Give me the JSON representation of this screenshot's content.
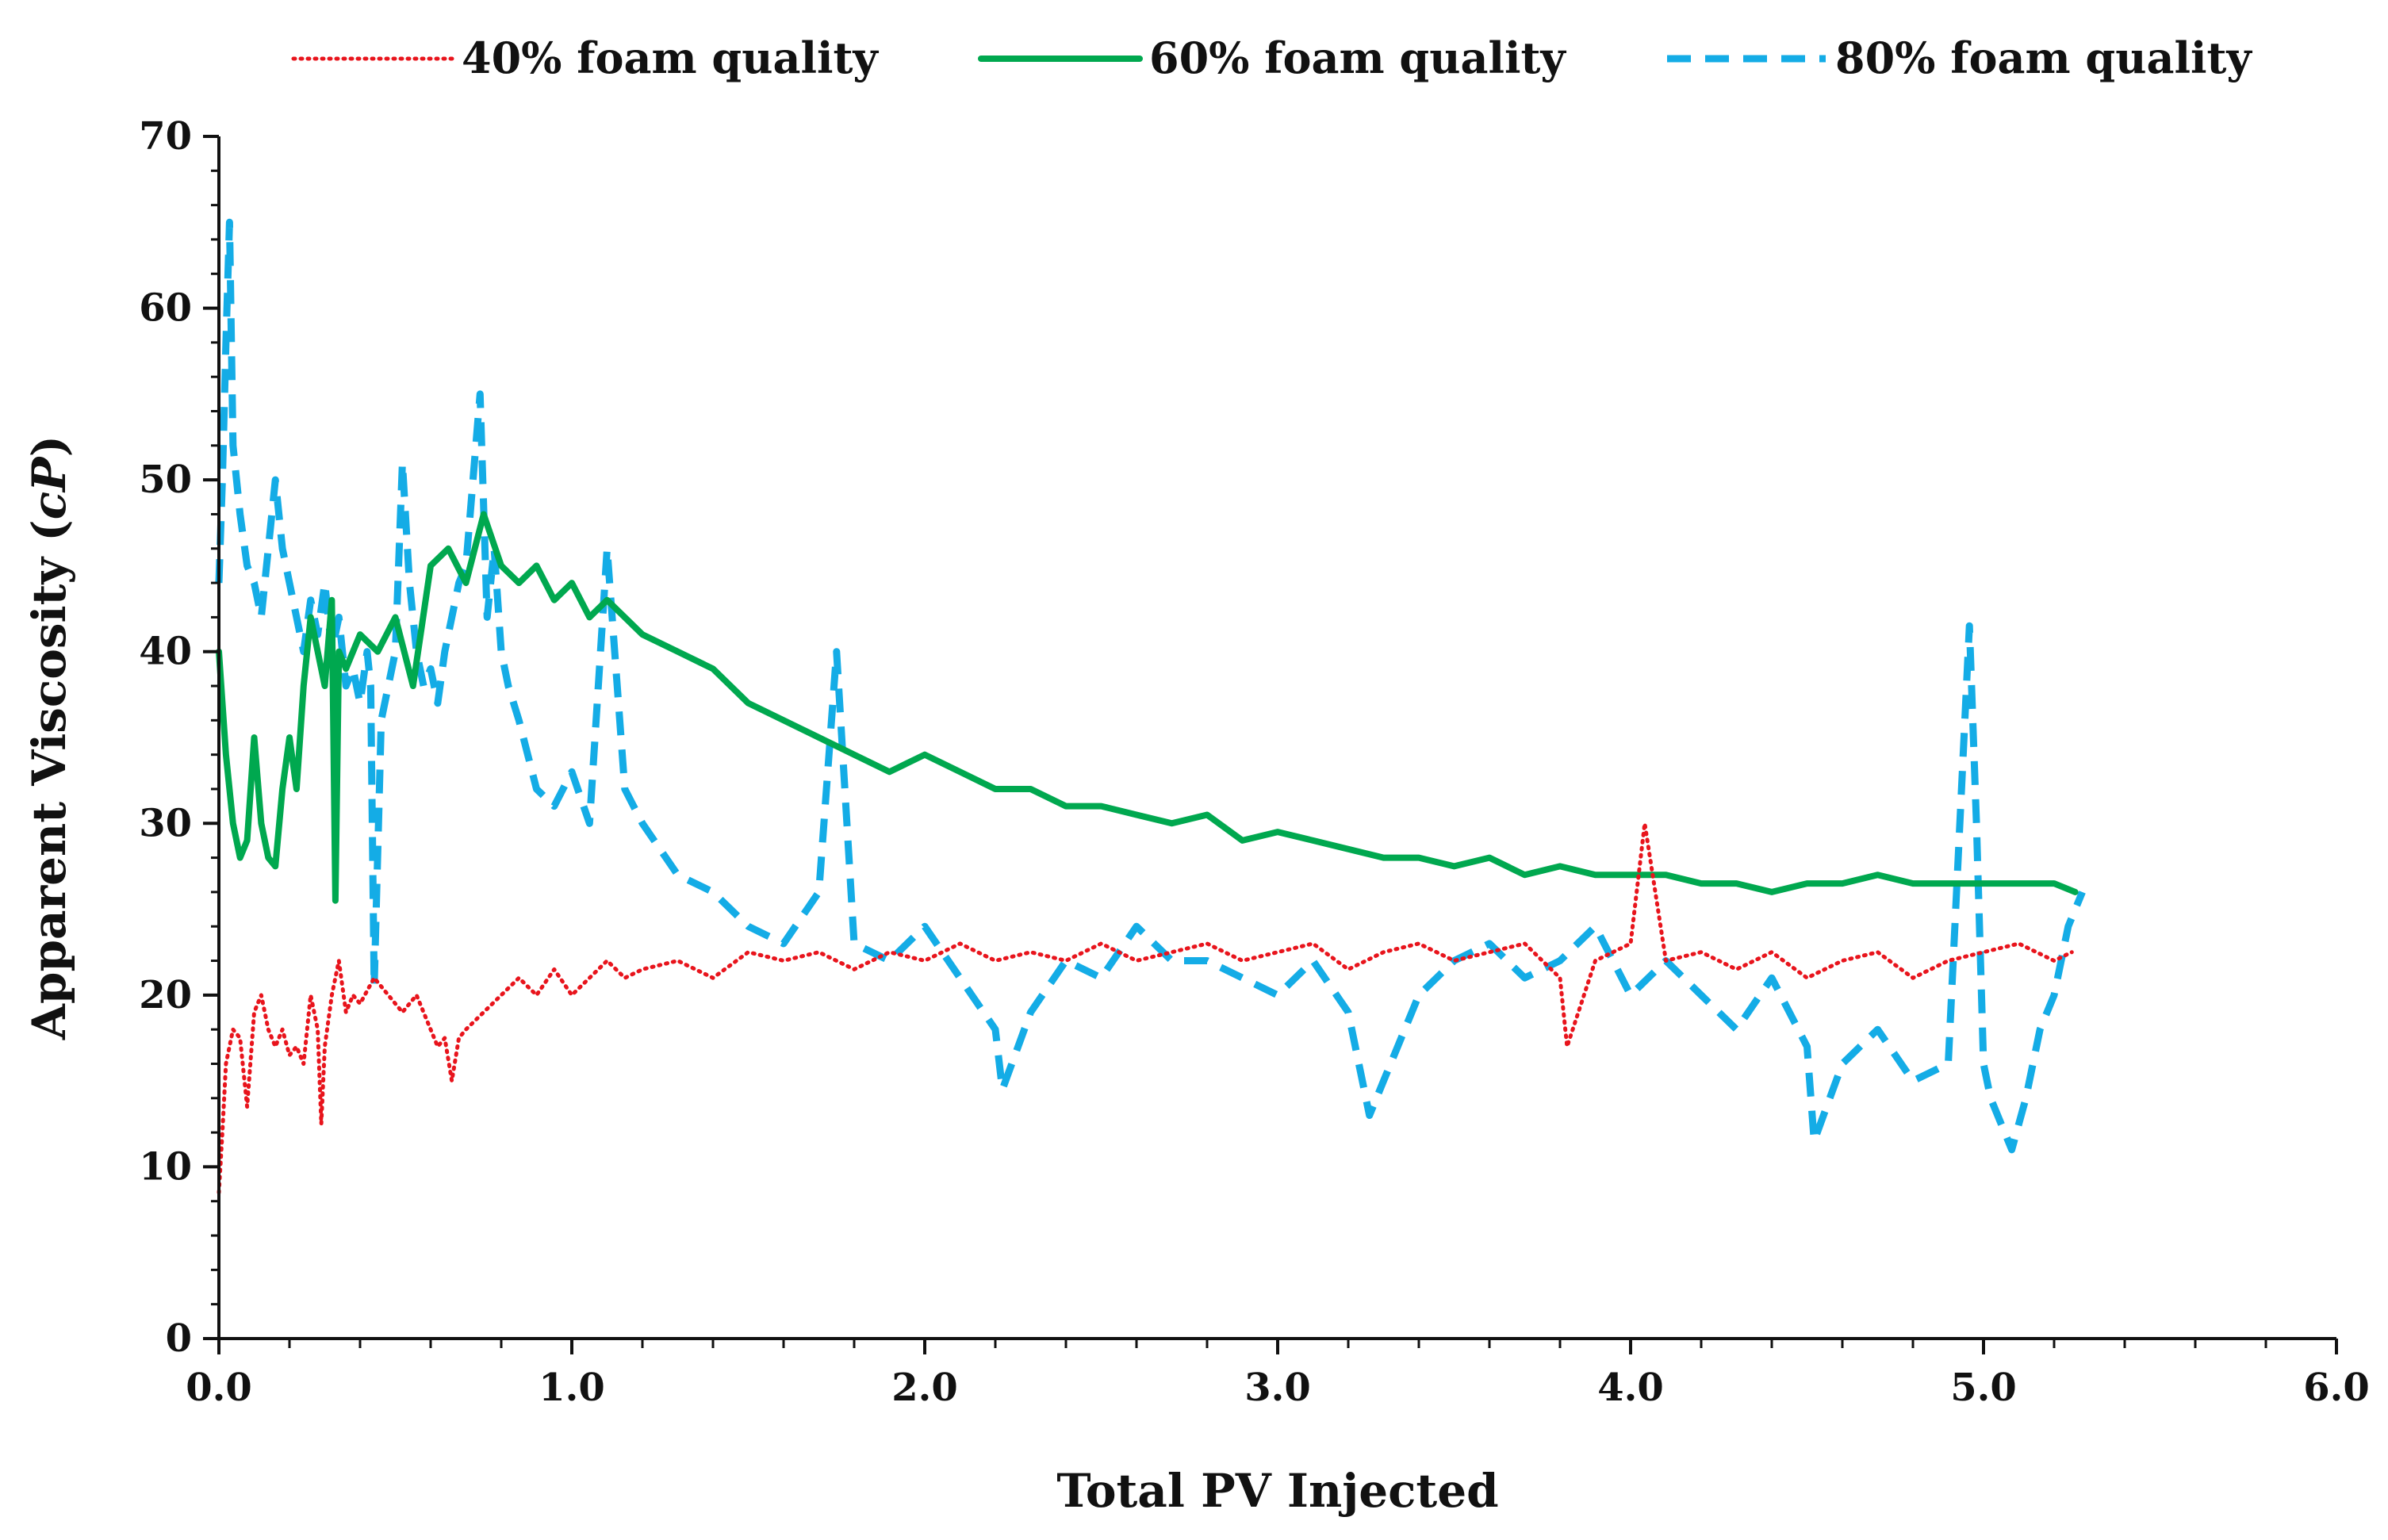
{
  "chart_data": {
    "type": "line",
    "title": "",
    "xlabel": "Total PV Injected",
    "ylabel": "Apparent Viscosity (cP)",
    "ylabel_main": "Apparent Viscosity (",
    "ylabel_unit": "cP",
    "ylabel_close": ")",
    "xlim": [
      0,
      6
    ],
    "ylim": [
      0,
      70
    ],
    "x_ticks": [
      0,
      1,
      2,
      3,
      4,
      5,
      6
    ],
    "x_tick_labels": [
      "0.0",
      "1.0",
      "2.0",
      "3.0",
      "4.0",
      "5.0",
      "6.0"
    ],
    "y_ticks": [
      0,
      10,
      20,
      30,
      40,
      50,
      60,
      70
    ],
    "y_tick_labels": [
      "0",
      "10",
      "20",
      "30",
      "40",
      "50",
      "60",
      "70"
    ],
    "grid": false,
    "legend_position": "top",
    "series": [
      {
        "name": "40% foam quality",
        "color": "#e8141c",
        "style": "dotted",
        "x": [
          0.0,
          0.01,
          0.02,
          0.04,
          0.06,
          0.08,
          0.1,
          0.12,
          0.14,
          0.16,
          0.18,
          0.2,
          0.22,
          0.24,
          0.26,
          0.28,
          0.29,
          0.3,
          0.32,
          0.34,
          0.36,
          0.38,
          0.4,
          0.44,
          0.48,
          0.52,
          0.56,
          0.6,
          0.62,
          0.64,
          0.66,
          0.68,
          0.7,
          0.75,
          0.8,
          0.85,
          0.9,
          0.95,
          1.0,
          1.05,
          1.1,
          1.15,
          1.2,
          1.3,
          1.4,
          1.5,
          1.6,
          1.7,
          1.8,
          1.9,
          2.0,
          2.1,
          2.2,
          2.3,
          2.4,
          2.5,
          2.6,
          2.7,
          2.8,
          2.9,
          3.0,
          3.1,
          3.2,
          3.3,
          3.4,
          3.5,
          3.6,
          3.7,
          3.8,
          3.82,
          3.9,
          4.0,
          4.04,
          4.1,
          4.2,
          4.3,
          4.4,
          4.5,
          4.6,
          4.7,
          4.8,
          4.9,
          5.0,
          5.1,
          5.2,
          5.25
        ],
        "y": [
          8.5,
          12,
          16,
          18,
          17.5,
          13.5,
          19,
          20,
          18,
          17,
          18,
          16.5,
          17,
          16,
          20,
          18,
          12.5,
          17,
          20,
          22,
          19,
          20,
          19.5,
          21,
          20,
          19,
          20,
          18,
          17,
          17.5,
          15,
          17.5,
          18,
          19,
          20,
          21,
          20,
          21.5,
          20,
          21,
          22,
          21,
          21.5,
          22,
          21,
          22.5,
          22,
          22.5,
          21.5,
          22.5,
          22,
          23,
          22,
          22.5,
          22,
          23,
          22,
          22.5,
          23,
          22,
          22.5,
          23,
          21.5,
          22.5,
          23,
          22,
          22.5,
          23,
          21,
          17,
          22,
          23,
          30,
          22,
          22.5,
          21.5,
          22.5,
          21,
          22,
          22.5,
          21,
          22,
          22.5,
          23,
          22,
          22.5
        ]
      },
      {
        "name": "60% foam quality",
        "color": "#00a84f",
        "style": "solid",
        "x": [
          0.0,
          0.02,
          0.04,
          0.06,
          0.08,
          0.1,
          0.12,
          0.14,
          0.16,
          0.18,
          0.2,
          0.22,
          0.24,
          0.26,
          0.28,
          0.3,
          0.32,
          0.33,
          0.34,
          0.36,
          0.38,
          0.4,
          0.45,
          0.5,
          0.55,
          0.6,
          0.65,
          0.7,
          0.75,
          0.8,
          0.85,
          0.9,
          0.95,
          1.0,
          1.05,
          1.1,
          1.2,
          1.3,
          1.4,
          1.5,
          1.6,
          1.7,
          1.8,
          1.9,
          2.0,
          2.1,
          2.2,
          2.3,
          2.4,
          2.5,
          2.6,
          2.7,
          2.8,
          2.9,
          3.0,
          3.1,
          3.2,
          3.3,
          3.4,
          3.5,
          3.6,
          3.7,
          3.8,
          3.9,
          4.0,
          4.1,
          4.2,
          4.3,
          4.4,
          4.5,
          4.6,
          4.7,
          4.8,
          4.9,
          5.0,
          5.1,
          5.2,
          5.26
        ],
        "y": [
          40,
          34,
          30,
          28,
          29,
          35,
          30,
          28,
          27.5,
          32,
          35,
          32,
          38,
          42,
          40,
          38,
          43,
          25.5,
          40,
          39,
          40,
          41,
          40,
          42,
          38,
          45,
          46,
          44,
          48,
          45,
          44,
          45,
          43,
          44,
          42,
          43,
          41,
          40,
          39,
          37,
          36,
          35,
          34,
          33,
          34,
          33,
          32,
          32,
          31,
          31,
          30.5,
          30,
          30.5,
          29,
          29.5,
          29,
          28.5,
          28,
          28,
          27.5,
          28,
          27,
          27.5,
          27,
          27,
          27,
          26.5,
          26.5,
          26,
          26.5,
          26.5,
          27,
          26.5,
          26.5,
          26.5,
          26.5,
          26.5,
          26
        ]
      },
      {
        "name": "80% foam quality",
        "color": "#14ace6",
        "style": "dashed",
        "x": [
          0.0,
          0.01,
          0.02,
          0.03,
          0.04,
          0.06,
          0.08,
          0.1,
          0.12,
          0.14,
          0.16,
          0.18,
          0.2,
          0.22,
          0.24,
          0.26,
          0.28,
          0.3,
          0.32,
          0.34,
          0.36,
          0.38,
          0.4,
          0.42,
          0.43,
          0.44,
          0.46,
          0.48,
          0.5,
          0.52,
          0.54,
          0.56,
          0.58,
          0.6,
          0.62,
          0.64,
          0.66,
          0.68,
          0.7,
          0.72,
          0.74,
          0.76,
          0.78,
          0.8,
          0.82,
          0.85,
          0.9,
          0.95,
          1.0,
          1.05,
          1.1,
          1.15,
          1.2,
          1.3,
          1.4,
          1.5,
          1.6,
          1.7,
          1.75,
          1.8,
          1.9,
          2.0,
          2.1,
          2.2,
          2.22,
          2.3,
          2.4,
          2.5,
          2.6,
          2.7,
          2.8,
          2.9,
          3.0,
          3.1,
          3.2,
          3.26,
          3.3,
          3.4,
          3.5,
          3.6,
          3.7,
          3.8,
          3.9,
          4.0,
          4.1,
          4.2,
          4.3,
          4.4,
          4.5,
          4.52,
          4.6,
          4.7,
          4.8,
          4.9,
          4.96,
          4.98,
          5.0,
          5.02,
          5.06,
          5.08,
          5.12,
          5.16,
          5.2,
          5.24,
          5.28
        ],
        "y": [
          44,
          50,
          58,
          65,
          52,
          48,
          45,
          44,
          42,
          46,
          50,
          46,
          44,
          42,
          40,
          43,
          41,
          44,
          40,
          42,
          38,
          39,
          37,
          40,
          38,
          20.5,
          36,
          38,
          40,
          51,
          44,
          40,
          38,
          39,
          37,
          40,
          42,
          44,
          45,
          50,
          55,
          42,
          46,
          40,
          38,
          36,
          32,
          31,
          33,
          30,
          46,
          32,
          30,
          27,
          26,
          24,
          23,
          26,
          40,
          23,
          22,
          24,
          21,
          18,
          14.5,
          19,
          22,
          21,
          24,
          22,
          22,
          21,
          20,
          22,
          19,
          13,
          15,
          20,
          22,
          23,
          21,
          22,
          24,
          20,
          22,
          20,
          18,
          21,
          17,
          11.5,
          16,
          18,
          15,
          16,
          41.5,
          30,
          16,
          14,
          12,
          11,
          14,
          18,
          20,
          24,
          26
        ]
      }
    ]
  }
}
